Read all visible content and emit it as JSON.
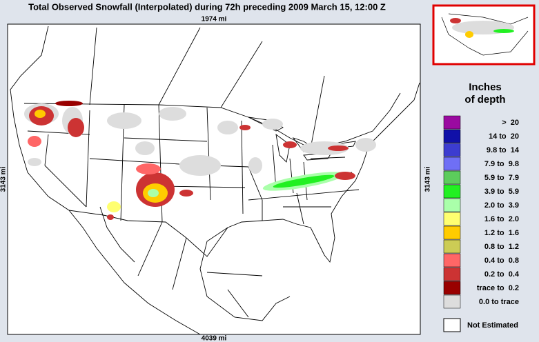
{
  "header": {
    "title": "Total Observed Snowfall (Interpolated) during 72h preceding 2009 March 15, 12:00 Z"
  },
  "map": {
    "top_label": "1974 mi",
    "bottom_label": "4039 mi",
    "left_label": "3143 mi",
    "right_label": "3143 mi"
  },
  "legend": {
    "title": [
      "Inches",
      "of depth"
    ],
    "items": [
      {
        "label": ">  20",
        "color": "#9a0aa0"
      },
      {
        "label": "14 to  20",
        "color": "#1010a8"
      },
      {
        "label": "9.8 to  14",
        "color": "#3c3cd0"
      },
      {
        "label": "7.9 to  9.8",
        "color": "#6f6ff5"
      },
      {
        "label": "5.9 to  7.9",
        "color": "#5ccc5c"
      },
      {
        "label": "3.9 to  5.9",
        "color": "#22f022"
      },
      {
        "label": "2.0 to  3.9",
        "color": "#aaffaa"
      },
      {
        "label": "1.6 to  2.0",
        "color": "#ffff70"
      },
      {
        "label": "1.2 to  1.6",
        "color": "#ffcc00"
      },
      {
        "label": "0.8 to  1.2",
        "color": "#cccc55"
      },
      {
        "label": "0.4 to  0.8",
        "color": "#ff6666"
      },
      {
        "label": "0.2 to  0.4",
        "color": "#cc3333"
      },
      {
        "label": "trace to  0.2",
        "color": "#990000"
      },
      {
        "label": "0.0 to trace",
        "color": "#dddddd"
      }
    ],
    "not_estimated": {
      "label": "Not Estimated",
      "color": "#ffffff"
    }
  }
}
